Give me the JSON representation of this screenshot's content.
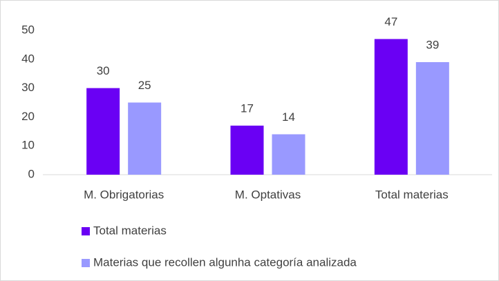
{
  "chart_data": {
    "type": "bar",
    "categories": [
      "M. Obrigatorias",
      "M. Optativas",
      "Total materias"
    ],
    "series": [
      {
        "name": "Total materias",
        "color": "#6a00f4",
        "values": [
          30,
          17,
          47
        ]
      },
      {
        "name": "Materias que recollen algunha categoría analizada",
        "color": "#9999ff",
        "values": [
          25,
          14,
          39
        ]
      }
    ],
    "ylim": [
      0,
      50
    ],
    "yticks": [
      0,
      10,
      20,
      30,
      40,
      50
    ],
    "grid": false,
    "legend": "bottom"
  }
}
